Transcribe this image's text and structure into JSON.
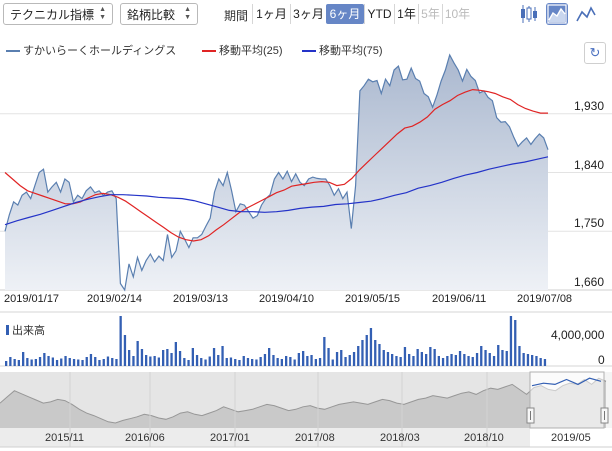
{
  "toolbar": {
    "chart_type_select": "テクニカル指標",
    "compare_select": "銘柄比較",
    "period_label": "期間",
    "periods": [
      {
        "label": "1ヶ月",
        "state": "normal"
      },
      {
        "label": "3ヶ月",
        "state": "normal"
      },
      {
        "label": "6ヶ月",
        "state": "active"
      },
      {
        "label": "YTD",
        "state": "normal"
      },
      {
        "label": "1年",
        "state": "normal"
      },
      {
        "label": "5年",
        "state": "disabled"
      },
      {
        "label": "10年",
        "state": "disabled"
      }
    ],
    "icons": [
      {
        "name": "candlestick-chart-icon",
        "active": false
      },
      {
        "name": "area-chart-icon",
        "active": true
      },
      {
        "name": "line-chart-icon",
        "active": false
      }
    ]
  },
  "legend": {
    "items": [
      {
        "label": "すかいらーくホールディングス",
        "color": "#5a7fb0"
      },
      {
        "label": "移動平均(25)",
        "color": "#e02424"
      },
      {
        "label": "移動平均(75)",
        "color": "#2433c8"
      }
    ]
  },
  "colors": {
    "price_line": "#5a7fb0",
    "area_fill_top": "#aab8cf",
    "area_fill_bottom": "#eef1f6",
    "ma25": "#e02424",
    "ma75": "#2433c8",
    "volume_bar": "#335fb3",
    "active_button": "#6686c6"
  },
  "chart_data": {
    "type": "area",
    "x_tick_labels": [
      "2019/01/17",
      "2019/02/14",
      "2019/03/13",
      "2019/04/10",
      "2019/05/15",
      "2019/06/11",
      "2019/07/08"
    ],
    "y_tick_labels": [
      "1,930",
      "1,840",
      "1,750",
      "1,660"
    ],
    "ylim": [
      1660,
      2020
    ],
    "series": [
      {
        "name": "すかいらーくホールディングス",
        "values": [
          1750,
          1775,
          1795,
          1790,
          1805,
          1810,
          1800,
          1820,
          1840,
          1845,
          1810,
          1818,
          1825,
          1810,
          1830,
          1825,
          1795,
          1805,
          1800,
          1812,
          1818,
          1809,
          1812,
          1805,
          1810,
          1812,
          1800,
          1670,
          1660,
          1700,
          1680,
          1710,
          1690,
          1705,
          1715,
          1703,
          1712,
          1705,
          1745,
          1710,
          1720,
          1750,
          1738,
          1725,
          1740,
          1740,
          1745,
          1758,
          1770,
          1810,
          1830,
          1820,
          1840,
          1812,
          1780,
          1792,
          1790,
          1780,
          1770,
          1774,
          1790,
          1800,
          1806,
          1830,
          1840,
          1830,
          1842,
          1826,
          1838,
          1825,
          1820,
          1830,
          1833,
          1831,
          1830,
          1830,
          1820,
          1805,
          1815,
          1800,
          1810,
          1754,
          1820,
          1965,
          1973,
          1983,
          1979,
          1981,
          1961,
          1983,
          1973,
          1997,
          2003,
          1982,
          1983,
          2000,
          1984,
          1980,
          1961,
          1956,
          1940,
          1958,
          1980,
          1997,
          2020,
          2008,
          1997,
          1980,
          1998,
          1987,
          1981,
          1962,
          1965,
          1955,
          1950,
          1924,
          1917,
          1918,
          1910,
          1894,
          1880,
          1887,
          1893,
          1883,
          1892,
          1899,
          1893,
          1875
        ]
      },
      {
        "name": "移動平均(25)",
        "values": [
          1840,
          1830,
          1820,
          1812,
          1808,
          1804,
          1800,
          1796,
          1792,
          1792,
          1795,
          1801,
          1806,
          1808,
          1806,
          1802,
          1796,
          1788,
          1780,
          1772,
          1764,
          1756,
          1748,
          1741,
          1737,
          1735,
          1737,
          1743,
          1752,
          1760,
          1769,
          1778,
          1785,
          1791,
          1797,
          1803,
          1809,
          1813,
          1819,
          1821,
          1823,
          1825,
          1826,
          1825,
          1820,
          1822,
          1831,
          1844,
          1855,
          1866,
          1877,
          1888,
          1899,
          1908,
          1911,
          1917,
          1925,
          1937,
          1944,
          1950,
          1958,
          1963,
          1967,
          1966,
          1964,
          1961,
          1956,
          1952,
          1944,
          1938,
          1934,
          1931,
          1931
        ]
      },
      {
        "name": "移動平均(75)",
        "values": [
          1760,
          1766,
          1771,
          1776,
          1782,
          1788,
          1794,
          1799,
          1803,
          1806,
          1806,
          1805,
          1804,
          1802,
          1801,
          1800,
          1797,
          1792,
          1787,
          1782,
          1780,
          1780,
          1779,
          1780,
          1782,
          1785,
          1787,
          1788,
          1791,
          1792,
          1794,
          1796,
          1800,
          1805,
          1809,
          1816,
          1820,
          1825,
          1831,
          1836,
          1840,
          1845,
          1849,
          1853,
          1856,
          1860,
          1864
        ]
      }
    ],
    "volume": {
      "label": "出来高",
      "y_tick_labels": [
        "4,000,000",
        "0"
      ],
      "ylim": [
        0,
        5000000
      ],
      "values": [
        500000,
        900000,
        700000,
        600000,
        1400000,
        800000,
        650000,
        700000,
        900000,
        1300000,
        1000000,
        850000,
        600000,
        750000,
        1000000,
        800000,
        700000,
        650000,
        600000,
        900000,
        1200000,
        900000,
        600000,
        700000,
        950000,
        800000,
        700000,
        5000000,
        3100000,
        1600000,
        1000000,
        2500000,
        1700000,
        1100000,
        950000,
        1000000,
        850000,
        1600000,
        1700000,
        1300000,
        2400000,
        1500000,
        800000,
        600000,
        1800000,
        1100000,
        800000,
        650000,
        950000,
        1800000,
        1100000,
        2000000,
        800000,
        850000,
        700000,
        600000,
        1000000,
        800000,
        700000,
        650000,
        900000,
        1200000,
        1800000,
        1100000,
        800000,
        700000,
        1000000,
        900000,
        650000,
        1300000,
        1500000,
        1000000,
        1100000,
        700000,
        800000,
        2900000,
        1800000,
        650000,
        1400000,
        1600000,
        900000,
        1100000,
        1400000,
        2000000,
        2600000,
        3100000,
        3800000,
        2600000,
        2200000,
        1600000,
        1400000,
        1200000,
        1000000,
        900000,
        1900000,
        1200000,
        1000000,
        1700000,
        1400000,
        1200000,
        1900000,
        1700000,
        1000000,
        800000,
        1000000,
        1200000,
        1100000,
        1500000,
        1200000,
        1000000,
        900000,
        1300000,
        2000000,
        1600000,
        1300000,
        1000000,
        2100000,
        1600000,
        1500000,
        5000000,
        4600000,
        2000000,
        1300000,
        1200000,
        1100000,
        1000000,
        800000,
        700000
      ]
    },
    "navigator": {
      "x_tick_labels": [
        "2015/11",
        "2016/06",
        "2017/01",
        "2017/08",
        "2018/03",
        "2018/10",
        "2019/05"
      ],
      "values": [
        40,
        50,
        60,
        55,
        50,
        45,
        40,
        42,
        46,
        44,
        38,
        30,
        24,
        20,
        15,
        10,
        8,
        12,
        15,
        18,
        22,
        20,
        16,
        14,
        18,
        24,
        26,
        22,
        20,
        24,
        28,
        34,
        30,
        26,
        28,
        30,
        34,
        38,
        36,
        32,
        28,
        30,
        34,
        36,
        32,
        30,
        34,
        38,
        40,
        42,
        40,
        38,
        42,
        46,
        44,
        40,
        38,
        42,
        46,
        48,
        52,
        50,
        48,
        52,
        56,
        58,
        54,
        60,
        64,
        62,
        66,
        70,
        62,
        54,
        65,
        68,
        62,
        60,
        68,
        72,
        70,
        78,
        70,
        80,
        75
      ]
    }
  }
}
